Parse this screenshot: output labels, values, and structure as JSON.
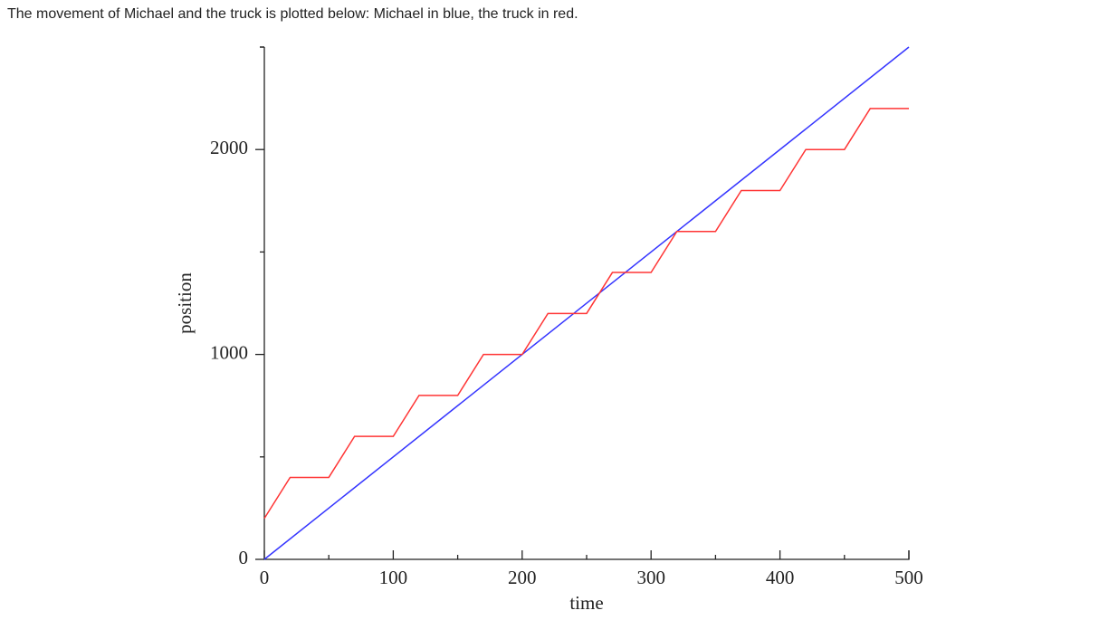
{
  "caption": "The movement of Michael and the truck is plotted below: Michael in blue, the truck in red.",
  "chart_data": {
    "type": "line",
    "xlabel": "time",
    "ylabel": "position",
    "xlim": [
      0,
      500
    ],
    "ylim": [
      0,
      2500
    ],
    "xticks": [
      0,
      100,
      200,
      300,
      400,
      500
    ],
    "yticks": [
      0,
      1000,
      2000
    ],
    "xminorticks": [
      50,
      150,
      250,
      350,
      450
    ],
    "yminorticks": [
      500,
      1500,
      2500
    ],
    "grid": false,
    "series": [
      {
        "color": "#3535ff",
        "x": [
          0,
          500
        ],
        "values": [
          0,
          2500
        ]
      },
      {
        "color": "#ff3535",
        "x": [
          0,
          20,
          50,
          70,
          100,
          120,
          150,
          170,
          200,
          220,
          250,
          270,
          300,
          320,
          350,
          370,
          400,
          420,
          450,
          470,
          500
        ],
        "values": [
          200,
          400,
          400,
          600,
          600,
          800,
          800,
          1000,
          1000,
          1200,
          1200,
          1400,
          1400,
          1600,
          1600,
          1800,
          1800,
          2000,
          2000,
          2200,
          2200
        ]
      }
    ]
  }
}
